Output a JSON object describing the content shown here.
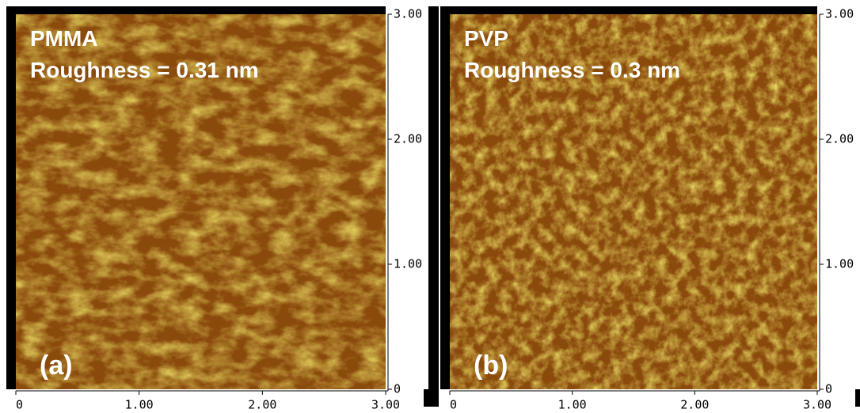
{
  "panels": [
    {
      "name": "PMMA",
      "roughness": "Roughness = 0.31 nm",
      "label": "(a)",
      "xlim": [
        0,
        3
      ],
      "ylim": [
        0,
        3
      ],
      "xticks": [
        0,
        {
          "value": 1,
          "label": "1.00"
        },
        {
          "value": 2,
          "label": "2.00"
        },
        {
          "value": 3,
          "label": "3.00"
        }
      ],
      "yticks": [
        0,
        {
          "value": 1,
          "label": "1.00"
        },
        {
          "value": 2,
          "label": "2.00"
        },
        {
          "value": 3,
          "label": "3.00"
        }
      ]
    },
    {
      "name": "PVP",
      "roughness": "Roughness = 0.3 nm",
      "label": "(b)",
      "xlim": [
        0,
        3
      ],
      "ylim": [
        0,
        3
      ],
      "xticks": [
        0,
        {
          "value": 1,
          "label": "1.00"
        },
        {
          "value": 2,
          "label": "2.00"
        },
        {
          "value": 3,
          "label": "3.00"
        }
      ],
      "yticks": [
        0,
        {
          "value": 1,
          "label": "1.00"
        },
        {
          "value": 2,
          "label": "2.00"
        },
        {
          "value": 3,
          "label": "3.00"
        }
      ]
    }
  ]
}
